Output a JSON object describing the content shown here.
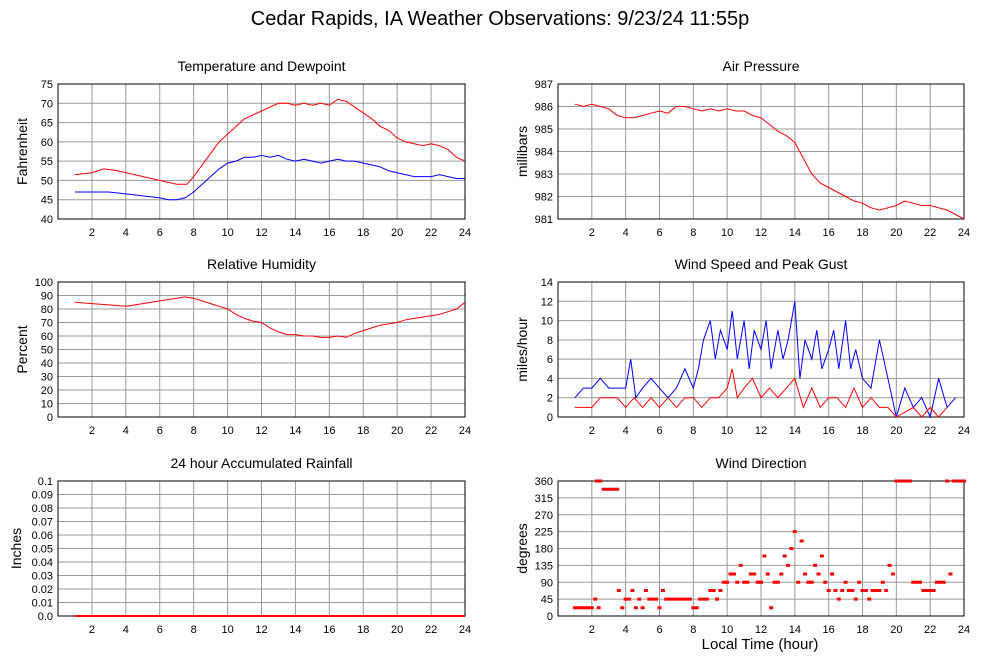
{
  "page": {
    "title": "Cedar Rapids, IA Weather Observations: 9/23/24 11:55p",
    "x_axis_label": "Local Time (hour)"
  },
  "colors": {
    "red": "#ff0000",
    "blue": "#0000ff",
    "grid": "#999999",
    "frame": "#000000"
  },
  "chart_data": [
    {
      "id": "temp",
      "type": "line",
      "title": "Temperature and Dewpoint",
      "xlabel": "",
      "ylabel": "Fahrenheit",
      "xlim": [
        0,
        24
      ],
      "ylim": [
        40,
        75
      ],
      "xticks": [
        2,
        4,
        6,
        8,
        10,
        12,
        14,
        16,
        18,
        20,
        22,
        24
      ],
      "yticks": [
        40,
        45,
        50,
        55,
        60,
        65,
        70,
        75
      ],
      "grid": true,
      "series": [
        {
          "color": "#ff0000",
          "x": [
            1,
            2,
            2.7,
            3.5,
            4.5,
            5.5,
            6.5,
            7,
            7.6,
            8,
            8.5,
            9,
            9.5,
            10,
            10.5,
            11,
            11.5,
            12,
            12.5,
            13,
            13.5,
            14,
            14.5,
            15,
            15.5,
            16,
            16.5,
            17,
            17.5,
            18,
            18.5,
            19,
            19.5,
            20,
            20.5,
            21,
            21.5,
            22,
            22.5,
            23,
            23.5,
            24
          ],
          "y": [
            51.5,
            52,
            53,
            52.5,
            51.5,
            50.5,
            49.5,
            49,
            49,
            51,
            54,
            57,
            60,
            62,
            64,
            66,
            67,
            68,
            69,
            70,
            70,
            69.5,
            70,
            69.5,
            70,
            69.5,
            71,
            70.5,
            69,
            67.5,
            66,
            64,
            63,
            61,
            60,
            59.5,
            59,
            59.5,
            59,
            58,
            56,
            55
          ]
        },
        {
          "color": "#0000ff",
          "x": [
            1,
            2,
            3,
            4,
            5,
            6,
            6.5,
            7,
            7.5,
            8,
            8.5,
            9,
            9.5,
            10,
            10.5,
            11,
            11.5,
            12,
            12.5,
            13,
            13.5,
            14,
            14.5,
            15,
            15.5,
            16,
            16.5,
            17,
            17.5,
            18,
            18.5,
            19,
            19.5,
            20,
            20.5,
            21,
            21.5,
            22,
            22.5,
            23,
            23.5,
            24
          ],
          "y": [
            47,
            47,
            47,
            46.5,
            46,
            45.5,
            45,
            45,
            45.5,
            47,
            49,
            51,
            53,
            54.5,
            55,
            56,
            56,
            56.5,
            56,
            56.5,
            55.5,
            55,
            55.5,
            55,
            54.5,
            55,
            55.5,
            55,
            55,
            54.5,
            54,
            53.5,
            52.5,
            52,
            51.5,
            51,
            51,
            51,
            51.5,
            51,
            50.5,
            50.5
          ]
        }
      ]
    },
    {
      "id": "pressure",
      "type": "line",
      "title": "Air Pressure",
      "xlabel": "",
      "ylabel": "millibars",
      "xlim": [
        0,
        24
      ],
      "ylim": [
        981,
        987
      ],
      "xticks": [
        2,
        4,
        6,
        8,
        10,
        12,
        14,
        16,
        18,
        20,
        22,
        24
      ],
      "yticks": [
        981,
        982,
        983,
        984,
        985,
        986,
        987
      ],
      "grid": true,
      "series": [
        {
          "color": "#ff0000",
          "x": [
            1,
            1.5,
            2,
            2.5,
            3,
            3.5,
            4,
            4.5,
            5,
            5.5,
            6,
            6.5,
            7,
            7.5,
            8,
            8.5,
            9,
            9.5,
            10,
            10.5,
            11,
            11.5,
            12,
            12.5,
            13,
            13.5,
            14,
            14.5,
            15,
            15.5,
            16,
            16.5,
            17,
            17.5,
            18,
            18.5,
            19,
            19.5,
            20,
            20.5,
            21,
            21.5,
            22,
            22.5,
            23,
            23.5,
            24
          ],
          "y": [
            986.1,
            986.0,
            986.1,
            986.0,
            985.9,
            985.6,
            985.5,
            985.5,
            985.6,
            985.7,
            985.8,
            985.7,
            986.0,
            986.0,
            985.9,
            985.8,
            985.9,
            985.8,
            985.9,
            985.8,
            985.8,
            985.6,
            985.5,
            985.2,
            984.9,
            984.7,
            984.4,
            983.7,
            983.0,
            982.6,
            982.4,
            982.2,
            982.0,
            981.8,
            981.7,
            981.5,
            981.4,
            981.5,
            981.6,
            981.8,
            981.7,
            981.6,
            981.6,
            981.5,
            981.4,
            981.2,
            981.0
          ]
        }
      ]
    },
    {
      "id": "humidity",
      "type": "line",
      "title": "Relative Humidity",
      "xlabel": "",
      "ylabel": "Percent",
      "xlim": [
        0,
        24
      ],
      "ylim": [
        0,
        100
      ],
      "xticks": [
        2,
        4,
        6,
        8,
        10,
        12,
        14,
        16,
        18,
        20,
        22,
        24
      ],
      "yticks": [
        0,
        10,
        20,
        30,
        40,
        50,
        60,
        70,
        80,
        90,
        100
      ],
      "grid": true,
      "series": [
        {
          "color": "#ff0000",
          "x": [
            1,
            2,
            3,
            4,
            5,
            6,
            7,
            7.5,
            8,
            8.5,
            9,
            9.5,
            10,
            10.5,
            11,
            11.5,
            12,
            12.5,
            13,
            13.5,
            14,
            14.5,
            15,
            15.5,
            16,
            16.5,
            17,
            17.5,
            18,
            18.5,
            19,
            19.5,
            20,
            20.5,
            21,
            21.5,
            22,
            22.5,
            23,
            23.5,
            24
          ],
          "y": [
            85,
            84,
            83,
            82,
            84,
            86,
            88,
            89,
            88,
            86,
            84,
            82,
            80,
            76,
            73,
            71,
            70,
            66,
            63,
            61,
            61,
            60,
            60,
            59,
            59,
            60,
            59,
            62,
            64,
            66,
            68,
            69,
            70,
            72,
            73,
            74,
            75,
            76,
            78,
            80,
            85
          ]
        }
      ]
    },
    {
      "id": "wind",
      "type": "line",
      "title": "Wind Speed and Peak Gust",
      "xlabel": "",
      "ylabel": "miles/hour",
      "xlim": [
        0,
        24
      ],
      "ylim": [
        0,
        14
      ],
      "xticks": [
        2,
        4,
        6,
        8,
        10,
        12,
        14,
        16,
        18,
        20,
        22,
        24
      ],
      "yticks": [
        0,
        2,
        4,
        6,
        8,
        10,
        12,
        14
      ],
      "grid": true,
      "series": [
        {
          "color": "#0000ff",
          "x": [
            1,
            1.5,
            2,
            2.5,
            3,
            3.5,
            4,
            4.3,
            4.6,
            5,
            5.5,
            6,
            6.5,
            7,
            7.5,
            8,
            8.3,
            8.6,
            9,
            9.3,
            9.6,
            10,
            10.3,
            10.6,
            11,
            11.3,
            11.6,
            12,
            12.3,
            12.6,
            13,
            13.3,
            13.6,
            14,
            14.3,
            14.6,
            15,
            15.3,
            15.6,
            16,
            16.3,
            16.6,
            17,
            17.3,
            17.6,
            18,
            18.5,
            19,
            19.5,
            20,
            20.5,
            21,
            21.5,
            22,
            22.5,
            23,
            23.5
          ],
          "y": [
            2,
            3,
            3,
            4,
            3,
            3,
            3,
            6,
            2,
            3,
            4,
            3,
            2,
            3,
            5,
            3,
            5,
            8,
            10,
            6,
            9,
            7,
            11,
            6,
            10,
            5,
            9,
            7,
            10,
            5,
            9,
            6,
            8,
            12,
            4,
            8,
            6,
            9,
            5,
            7,
            9,
            5,
            10,
            5,
            7,
            4,
            3,
            8,
            4,
            0,
            3,
            1,
            2,
            0,
            4,
            1,
            2
          ]
        },
        {
          "color": "#ff0000",
          "x": [
            1,
            1.5,
            2,
            2.5,
            3,
            3.5,
            4,
            4.5,
            5,
            5.5,
            6,
            6.5,
            7,
            7.5,
            8,
            8.5,
            9,
            9.5,
            10,
            10.3,
            10.6,
            11,
            11.5,
            12,
            12.5,
            13,
            13.5,
            14,
            14.5,
            15,
            15.5,
            16,
            16.5,
            17,
            17.5,
            18,
            18.5,
            19,
            19.5,
            20,
            21,
            21.5,
            22,
            22.5,
            23
          ],
          "y": [
            1,
            1,
            1,
            2,
            2,
            2,
            1,
            2,
            1,
            2,
            1,
            2,
            1,
            2,
            2,
            1,
            2,
            2,
            3,
            5,
            2,
            3,
            4,
            2,
            3,
            2,
            3,
            4,
            1,
            3,
            1,
            2,
            2,
            1,
            3,
            1,
            2,
            1,
            1,
            0,
            1,
            0,
            1,
            0,
            1
          ]
        }
      ]
    },
    {
      "id": "rain",
      "type": "line",
      "title": "24 hour Accumulated Rainfall",
      "xlabel": "",
      "ylabel": "Inches",
      "xlim": [
        0,
        24
      ],
      "ylim": [
        0,
        0.1
      ],
      "xticks": [
        2,
        4,
        6,
        8,
        10,
        12,
        14,
        16,
        18,
        20,
        22,
        24
      ],
      "yticks": [
        0.0,
        0.01,
        0.02,
        0.03,
        0.04,
        0.05,
        0.06,
        0.07,
        0.08,
        0.09,
        0.1
      ],
      "ytick_labels": [
        "0.0",
        "0.01",
        "0.02",
        "0.03",
        "0.04",
        "0.05",
        "0.06",
        "0.07",
        "0.08",
        "0.09",
        "0.1"
      ],
      "grid": true,
      "series": [
        {
          "color": "#ff0000",
          "x": [
            1,
            24
          ],
          "y": [
            0,
            0
          ]
        }
      ]
    },
    {
      "id": "direction",
      "type": "scatter",
      "title": "Wind Direction",
      "xlabel": "Local Time (hour)",
      "ylabel": "degrees",
      "xlim": [
        0,
        24
      ],
      "ylim": [
        0,
        360
      ],
      "xticks": [
        2,
        4,
        6,
        8,
        10,
        12,
        14,
        16,
        18,
        20,
        22,
        24
      ],
      "yticks": [
        0,
        45,
        90,
        135,
        180,
        225,
        270,
        315,
        360
      ],
      "grid": true,
      "series": [
        {
          "color": "#ff0000",
          "x": [
            1.0,
            1.2,
            1.4,
            1.6,
            1.8,
            2.0,
            2.2,
            2.4,
            2.3,
            2.5,
            2.7,
            2.9,
            3.1,
            3.3,
            3.5,
            3.6,
            3.8,
            4.0,
            4.2,
            4.4,
            4.6,
            4.8,
            5.0,
            5.2,
            5.4,
            5.6,
            5.8,
            6.0,
            6.2,
            6.4,
            6.6,
            6.8,
            7.0,
            7.2,
            7.4,
            7.6,
            7.8,
            8.0,
            8.2,
            8.4,
            8.6,
            8.8,
            9.0,
            9.2,
            9.4,
            9.6,
            9.8,
            10.0,
            10.2,
            10.4,
            10.6,
            10.8,
            11.0,
            11.2,
            11.4,
            11.6,
            11.8,
            12.0,
            12.2,
            12.4,
            12.6,
            12.8,
            13.0,
            13.2,
            13.4,
            13.6,
            13.8,
            14.0,
            14.2,
            14.4,
            14.6,
            14.8,
            15.0,
            15.2,
            15.4,
            15.6,
            15.8,
            16.0,
            16.2,
            16.4,
            16.6,
            16.8,
            17.0,
            17.2,
            17.4,
            17.6,
            17.8,
            18.0,
            18.2,
            18.4,
            18.6,
            18.8,
            19.0,
            19.2,
            19.4,
            19.6,
            19.8,
            20.0,
            20.2,
            20.4,
            20.6,
            20.8,
            21.0,
            21.2,
            21.4,
            21.6,
            21.8,
            22.0,
            22.2,
            22.4,
            22.6,
            22.8,
            23.0,
            23.2,
            23.4,
            23.6,
            23.8,
            24.0
          ],
          "y": [
            22,
            22,
            22,
            22,
            22,
            22,
            45,
            22,
            360,
            360,
            338,
            338,
            338,
            338,
            338,
            68,
            22,
            45,
            45,
            68,
            22,
            45,
            22,
            68,
            45,
            45,
            45,
            22,
            68,
            45,
            45,
            45,
            45,
            45,
            45,
            45,
            45,
            22,
            22,
            45,
            45,
            45,
            68,
            68,
            45,
            68,
            90,
            90,
            112,
            112,
            90,
            135,
            90,
            90,
            112,
            112,
            90,
            90,
            160,
            112,
            22,
            90,
            90,
            112,
            160,
            135,
            180,
            225,
            90,
            200,
            112,
            90,
            90,
            135,
            112,
            160,
            90,
            68,
            112,
            68,
            45,
            68,
            90,
            68,
            68,
            45,
            90,
            68,
            68,
            45,
            68,
            68,
            68,
            90,
            68,
            135,
            112,
            360,
            360,
            360,
            360,
            360,
            90,
            90,
            90,
            68,
            68,
            68,
            68,
            90,
            90,
            90,
            360,
            112,
            360,
            360,
            360,
            360
          ]
        }
      ]
    }
  ]
}
